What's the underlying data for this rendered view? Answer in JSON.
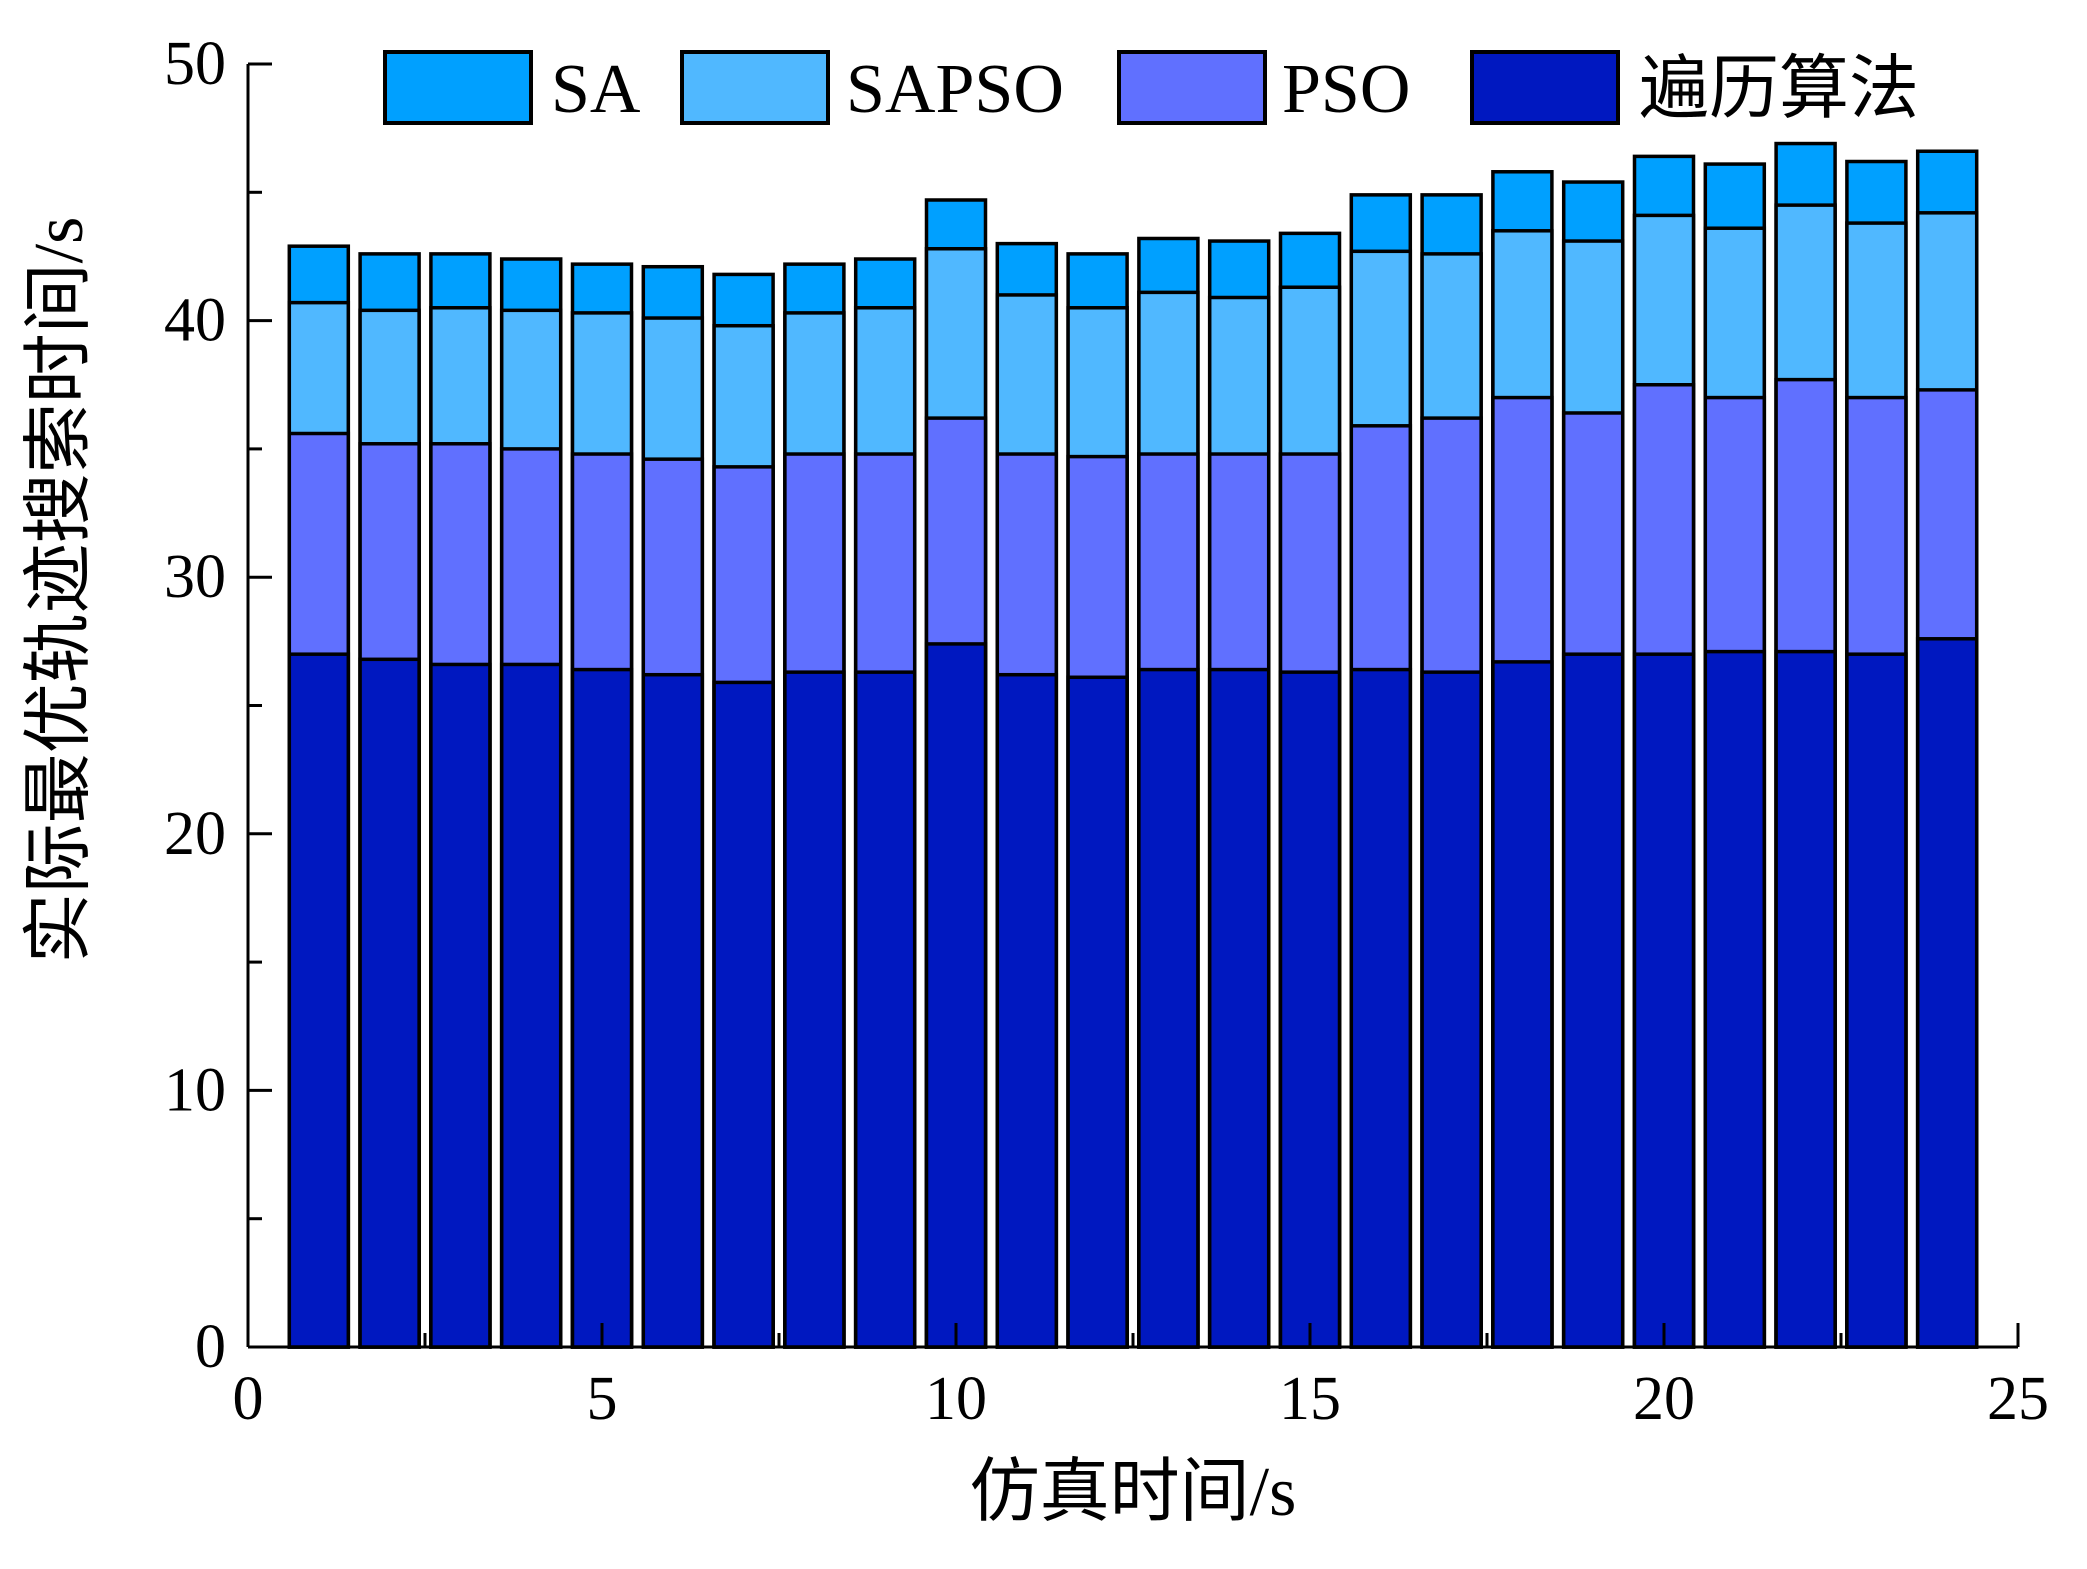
{
  "chart_data": {
    "type": "bar",
    "mode": "overlapped",
    "xlabel": "仿真时间/s",
    "ylabel": "实际最优轨迹搜索时间/s",
    "xlim": [
      0,
      25
    ],
    "ylim": [
      0,
      50
    ],
    "xticks": [
      "0",
      "5",
      "10",
      "15",
      "20",
      "25"
    ],
    "yticks": [
      "0",
      "10",
      "20",
      "30",
      "40",
      "50"
    ],
    "grid": false,
    "legend_position": "top",
    "x": [
      1,
      2,
      3,
      4,
      5,
      6,
      7,
      8,
      9,
      10,
      11,
      12,
      13,
      14,
      15,
      16,
      17,
      18,
      19,
      20,
      21,
      22,
      23,
      24
    ],
    "series": [
      {
        "name": "SA",
        "color": "#00A0FF",
        "values": [
          42.9,
          42.6,
          42.6,
          42.4,
          42.2,
          42.1,
          41.8,
          42.2,
          42.4,
          44.7,
          43.0,
          42.6,
          43.2,
          43.1,
          43.4,
          44.9,
          44.9,
          45.8,
          45.4,
          46.4,
          46.1,
          46.9,
          46.2,
          46.6
        ]
      },
      {
        "name": "SAPSO",
        "color": "#50B8FF",
        "values": [
          40.7,
          40.4,
          40.5,
          40.4,
          40.3,
          40.1,
          39.8,
          40.3,
          40.5,
          42.8,
          41.0,
          40.5,
          41.1,
          40.9,
          41.3,
          42.7,
          42.6,
          43.5,
          43.1,
          44.1,
          43.6,
          44.5,
          43.8,
          44.2
        ]
      },
      {
        "name": "PSO",
        "color": "#6070FF",
        "values": [
          35.6,
          35.2,
          35.2,
          35.0,
          34.8,
          34.6,
          34.3,
          34.8,
          34.8,
          36.2,
          34.8,
          34.7,
          34.8,
          34.8,
          34.8,
          35.9,
          36.2,
          37.0,
          36.4,
          37.5,
          37.0,
          37.7,
          37.0,
          37.3
        ]
      },
      {
        "name": "遍历算法",
        "color": "#0018C0",
        "values": [
          27.0,
          26.8,
          26.6,
          26.6,
          26.4,
          26.2,
          25.9,
          26.3,
          26.3,
          27.4,
          26.2,
          26.1,
          26.4,
          26.4,
          26.3,
          26.4,
          26.3,
          26.7,
          27.0,
          27.0,
          27.1,
          27.1,
          27.0,
          27.6
        ]
      }
    ]
  }
}
